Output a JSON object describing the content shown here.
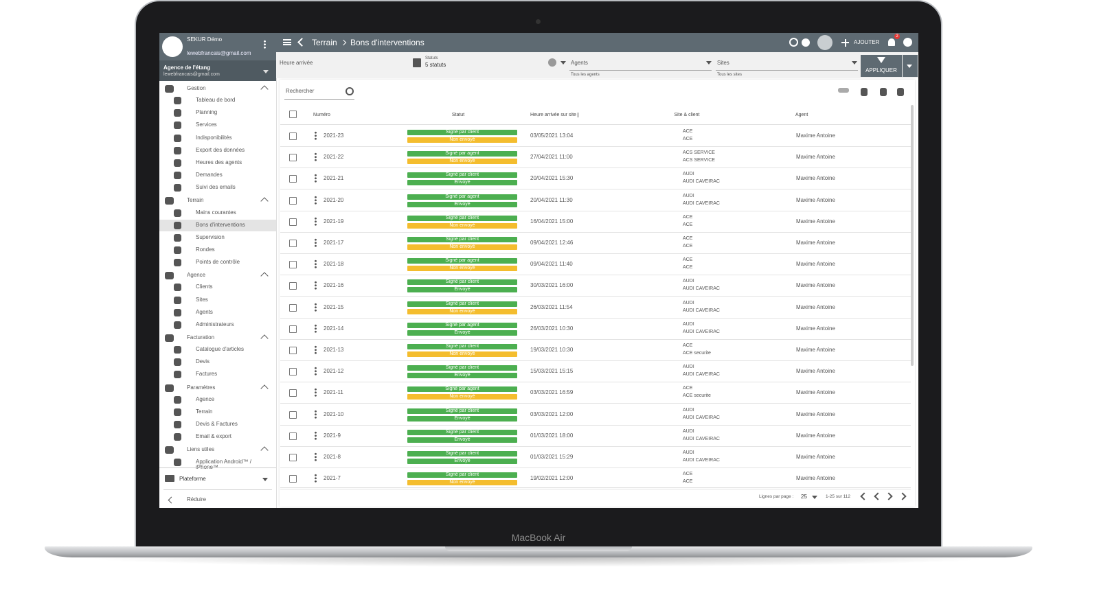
{
  "device_label": "MacBook Air",
  "sidebar": {
    "user_name": "SEKUR Démo",
    "user_email": "lewebfrancais@gmail.com",
    "agency": "Agence de l'étang",
    "agency_email": "lewebfrancais@gmail.com",
    "sections": [
      {
        "title": "Gestion",
        "items": [
          "Tableau de bord",
          "Planning",
          "Services",
          "Indisponibilités",
          "Export des données",
          "Heures des agents",
          "Demandes",
          "Suivi des emails"
        ]
      },
      {
        "title": "Terrain",
        "items": [
          "Mains courantes",
          "Bons d'interventions",
          "Supervision",
          "Rondes",
          "Points de contrôle"
        ]
      },
      {
        "title": "Agence",
        "items": [
          "Clients",
          "Sites",
          "Agents",
          "Administrateurs"
        ]
      },
      {
        "title": "Facturation",
        "items": [
          "Catalogue d'articles",
          "Devis",
          "Factures"
        ]
      },
      {
        "title": "Paramètres",
        "items": [
          "Agence",
          "Terrain",
          "Devis & Factures",
          "Email & export"
        ]
      },
      {
        "title": "Liens utiles",
        "items": [
          "Application Android™ / iPhone™"
        ]
      }
    ],
    "platform": "Plateforme",
    "collapse": "Réduire"
  },
  "topbar": {
    "breadcrumb": [
      "Terrain",
      "Bons d'interventions"
    ],
    "add": "AJOUTER",
    "notifications": "2"
  },
  "filters": {
    "arrival": "Heure arrivée",
    "status_label": "Statuts",
    "status_value": "5 statuts",
    "agents": "Agents",
    "agents_hint": "Tous les agents",
    "sites": "Sites",
    "sites_hint": "Tous les sites",
    "apply": "APPLIQUER"
  },
  "search": "Rechercher",
  "table": {
    "headers": [
      "Numéro",
      "Statut",
      "Heure arrivée sur site",
      "Site & client",
      "Agent"
    ],
    "rows": [
      [
        "2021-23",
        [
          {
            "label": "Signé par client",
            "color": "#4caf50"
          },
          {
            "label": "Non envoyé",
            "color": "#f4bd2e"
          }
        ],
        "03/05/2021 13:04",
        [
          "ACE",
          "ACE"
        ],
        "Maxime Antoine"
      ],
      [
        "2021-22",
        [
          {
            "label": "Signé par agent",
            "color": "#4caf50"
          },
          {
            "label": "Non envoyé",
            "color": "#f4bd2e"
          }
        ],
        "27/04/2021 11:00",
        [
          "ACS SERVICE",
          "ACS SERVICE"
        ],
        "Maxime Antoine"
      ],
      [
        "2021-21",
        [
          {
            "label": "Signé par client",
            "color": "#4caf50"
          },
          {
            "label": "Envoyé",
            "color": "#4caf50"
          }
        ],
        "20/04/2021 15:30",
        [
          "AUDI",
          "AUDI CAVEIRAC"
        ],
        "Maxime Antoine"
      ],
      [
        "2021-20",
        [
          {
            "label": "Signé par agent",
            "color": "#4caf50"
          },
          {
            "label": "Envoyé",
            "color": "#4caf50"
          }
        ],
        "20/04/2021 11:30",
        [
          "AUDI",
          "AUDI CAVEIRAC"
        ],
        "Maxime Antoine"
      ],
      [
        "2021-19",
        [
          {
            "label": "Signé par client",
            "color": "#4caf50"
          },
          {
            "label": "Non envoyé",
            "color": "#f4bd2e"
          }
        ],
        "16/04/2021 15:00",
        [
          "ACE",
          "ACE"
        ],
        "Maxime Antoine"
      ],
      [
        "2021-17",
        [
          {
            "label": "Signé par client",
            "color": "#4caf50"
          },
          {
            "label": "Non envoyé",
            "color": "#f4bd2e"
          }
        ],
        "09/04/2021 12:46",
        [
          "ACE",
          "ACE"
        ],
        "Maxime Antoine"
      ],
      [
        "2021-18",
        [
          {
            "label": "Signé par agent",
            "color": "#4caf50"
          },
          {
            "label": "Non envoyé",
            "color": "#f4bd2e"
          }
        ],
        "09/04/2021 11:40",
        [
          "ACE",
          "ACE"
        ],
        "Maxime Antoine"
      ],
      [
        "2021-16",
        [
          {
            "label": "Signé par client",
            "color": "#4caf50"
          },
          {
            "label": "Envoyé",
            "color": "#4caf50"
          }
        ],
        "30/03/2021 16:00",
        [
          "AUDI",
          "AUDI CAVEIRAC"
        ],
        "Maxime Antoine"
      ],
      [
        "2021-15",
        [
          {
            "label": "Signé par client",
            "color": "#4caf50"
          },
          {
            "label": "Non envoyé",
            "color": "#f4bd2e"
          }
        ],
        "26/03/2021 11:54",
        [
          "AUDI",
          "AUDI CAVEIRAC"
        ],
        "Maxime Antoine"
      ],
      [
        "2021-14",
        [
          {
            "label": "Signé par agent",
            "color": "#4caf50"
          },
          {
            "label": "Envoyé",
            "color": "#4caf50"
          }
        ],
        "26/03/2021 10:30",
        [
          "AUDI",
          "AUDI CAVEIRAC"
        ],
        "Maxime Antoine"
      ],
      [
        "2021-13",
        [
          {
            "label": "Signé par client",
            "color": "#4caf50"
          },
          {
            "label": "Non envoyé",
            "color": "#f4bd2e"
          }
        ],
        "19/03/2021 10:30",
        [
          "ACE",
          "ACE securite"
        ],
        "Maxime Antoine"
      ],
      [
        "2021-12",
        [
          {
            "label": "Signé par client",
            "color": "#4caf50"
          },
          {
            "label": "Envoyé",
            "color": "#4caf50"
          }
        ],
        "15/03/2021 15:15",
        [
          "AUDI",
          "AUDI CAVEIRAC"
        ],
        "Maxime Antoine"
      ],
      [
        "2021-11",
        [
          {
            "label": "Signé par agent",
            "color": "#4caf50"
          },
          {
            "label": "Non envoyé",
            "color": "#f4bd2e"
          }
        ],
        "03/03/2021 16:59",
        [
          "ACE",
          "ACE securite"
        ],
        "Maxime Antoine"
      ],
      [
        "2021-10",
        [
          {
            "label": "Signé par client",
            "color": "#4caf50"
          },
          {
            "label": "Envoyé",
            "color": "#4caf50"
          }
        ],
        "03/03/2021 12:00",
        [
          "AUDI",
          "AUDI CAVEIRAC"
        ],
        "Maxime Antoine"
      ],
      [
        "2021-9",
        [
          {
            "label": "Signé par client",
            "color": "#4caf50"
          },
          {
            "label": "Envoyé",
            "color": "#4caf50"
          }
        ],
        "01/03/2021 18:00",
        [
          "AUDI",
          "AUDI CAVEIRAC"
        ],
        "Maxime Antoine"
      ],
      [
        "2021-8",
        [
          {
            "label": "Signé par client",
            "color": "#4caf50"
          },
          {
            "label": "Envoyé",
            "color": "#4caf50"
          }
        ],
        "01/03/2021 15:29",
        [
          "AUDI",
          "AUDI CAVEIRAC"
        ],
        "Maxime Antoine"
      ],
      [
        "2021-7",
        [
          {
            "label": "Signé par client",
            "color": "#4caf50"
          },
          {
            "label": "Non envoyé",
            "color": "#f4bd2e"
          }
        ],
        "19/02/2021 12:00",
        [
          "ACE",
          "ACE"
        ],
        "Maxime Antoine"
      ]
    ]
  },
  "pagination": {
    "rows_label": "Lignes par page :",
    "rows_value": "25",
    "range": "1-25 sur 112"
  }
}
